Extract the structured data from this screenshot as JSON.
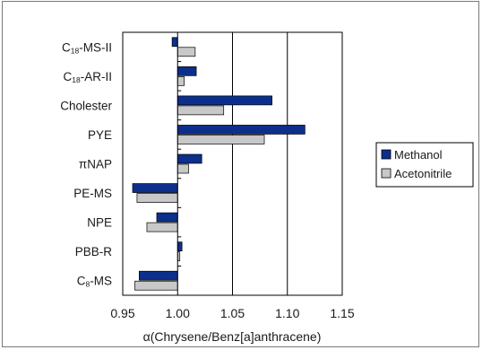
{
  "chart_data": {
    "type": "bar",
    "orientation": "horizontal",
    "categories": [
      {
        "main": "C",
        "sub": "18",
        "rest": "-MS-II"
      },
      {
        "main": "C",
        "sub": "18",
        "rest": "-AR-II"
      },
      {
        "main": "Cholester",
        "sub": "",
        "rest": ""
      },
      {
        "main": "PYE",
        "sub": "",
        "rest": ""
      },
      {
        "main": "πNAP",
        "sub": "",
        "rest": ""
      },
      {
        "main": "PE-MS",
        "sub": "",
        "rest": ""
      },
      {
        "main": "NPE",
        "sub": "",
        "rest": ""
      },
      {
        "main": "PBB-R",
        "sub": "",
        "rest": ""
      },
      {
        "main": "C",
        "sub": "8",
        "rest": "-MS"
      }
    ],
    "series": [
      {
        "name": "Methanol",
        "color": "#0d2f8c",
        "values": [
          0.995,
          1.017,
          1.086,
          1.116,
          1.022,
          0.959,
          0.981,
          1.004,
          0.965
        ]
      },
      {
        "name": "Acetonitrile",
        "color": "#c8c8c8",
        "values": [
          1.016,
          1.006,
          1.042,
          1.079,
          1.01,
          0.963,
          0.972,
          1.002,
          0.961
        ]
      }
    ],
    "xlabel": "α(Chrysene/Benz[a]anthracene)",
    "ylabel": "",
    "xlim": [
      0.95,
      1.15
    ],
    "xticks": [
      "0.95",
      "1.00",
      "1.05",
      "1.10",
      "1.15"
    ],
    "baseline": 1.0,
    "grid": "vertical",
    "legend": "right"
  }
}
